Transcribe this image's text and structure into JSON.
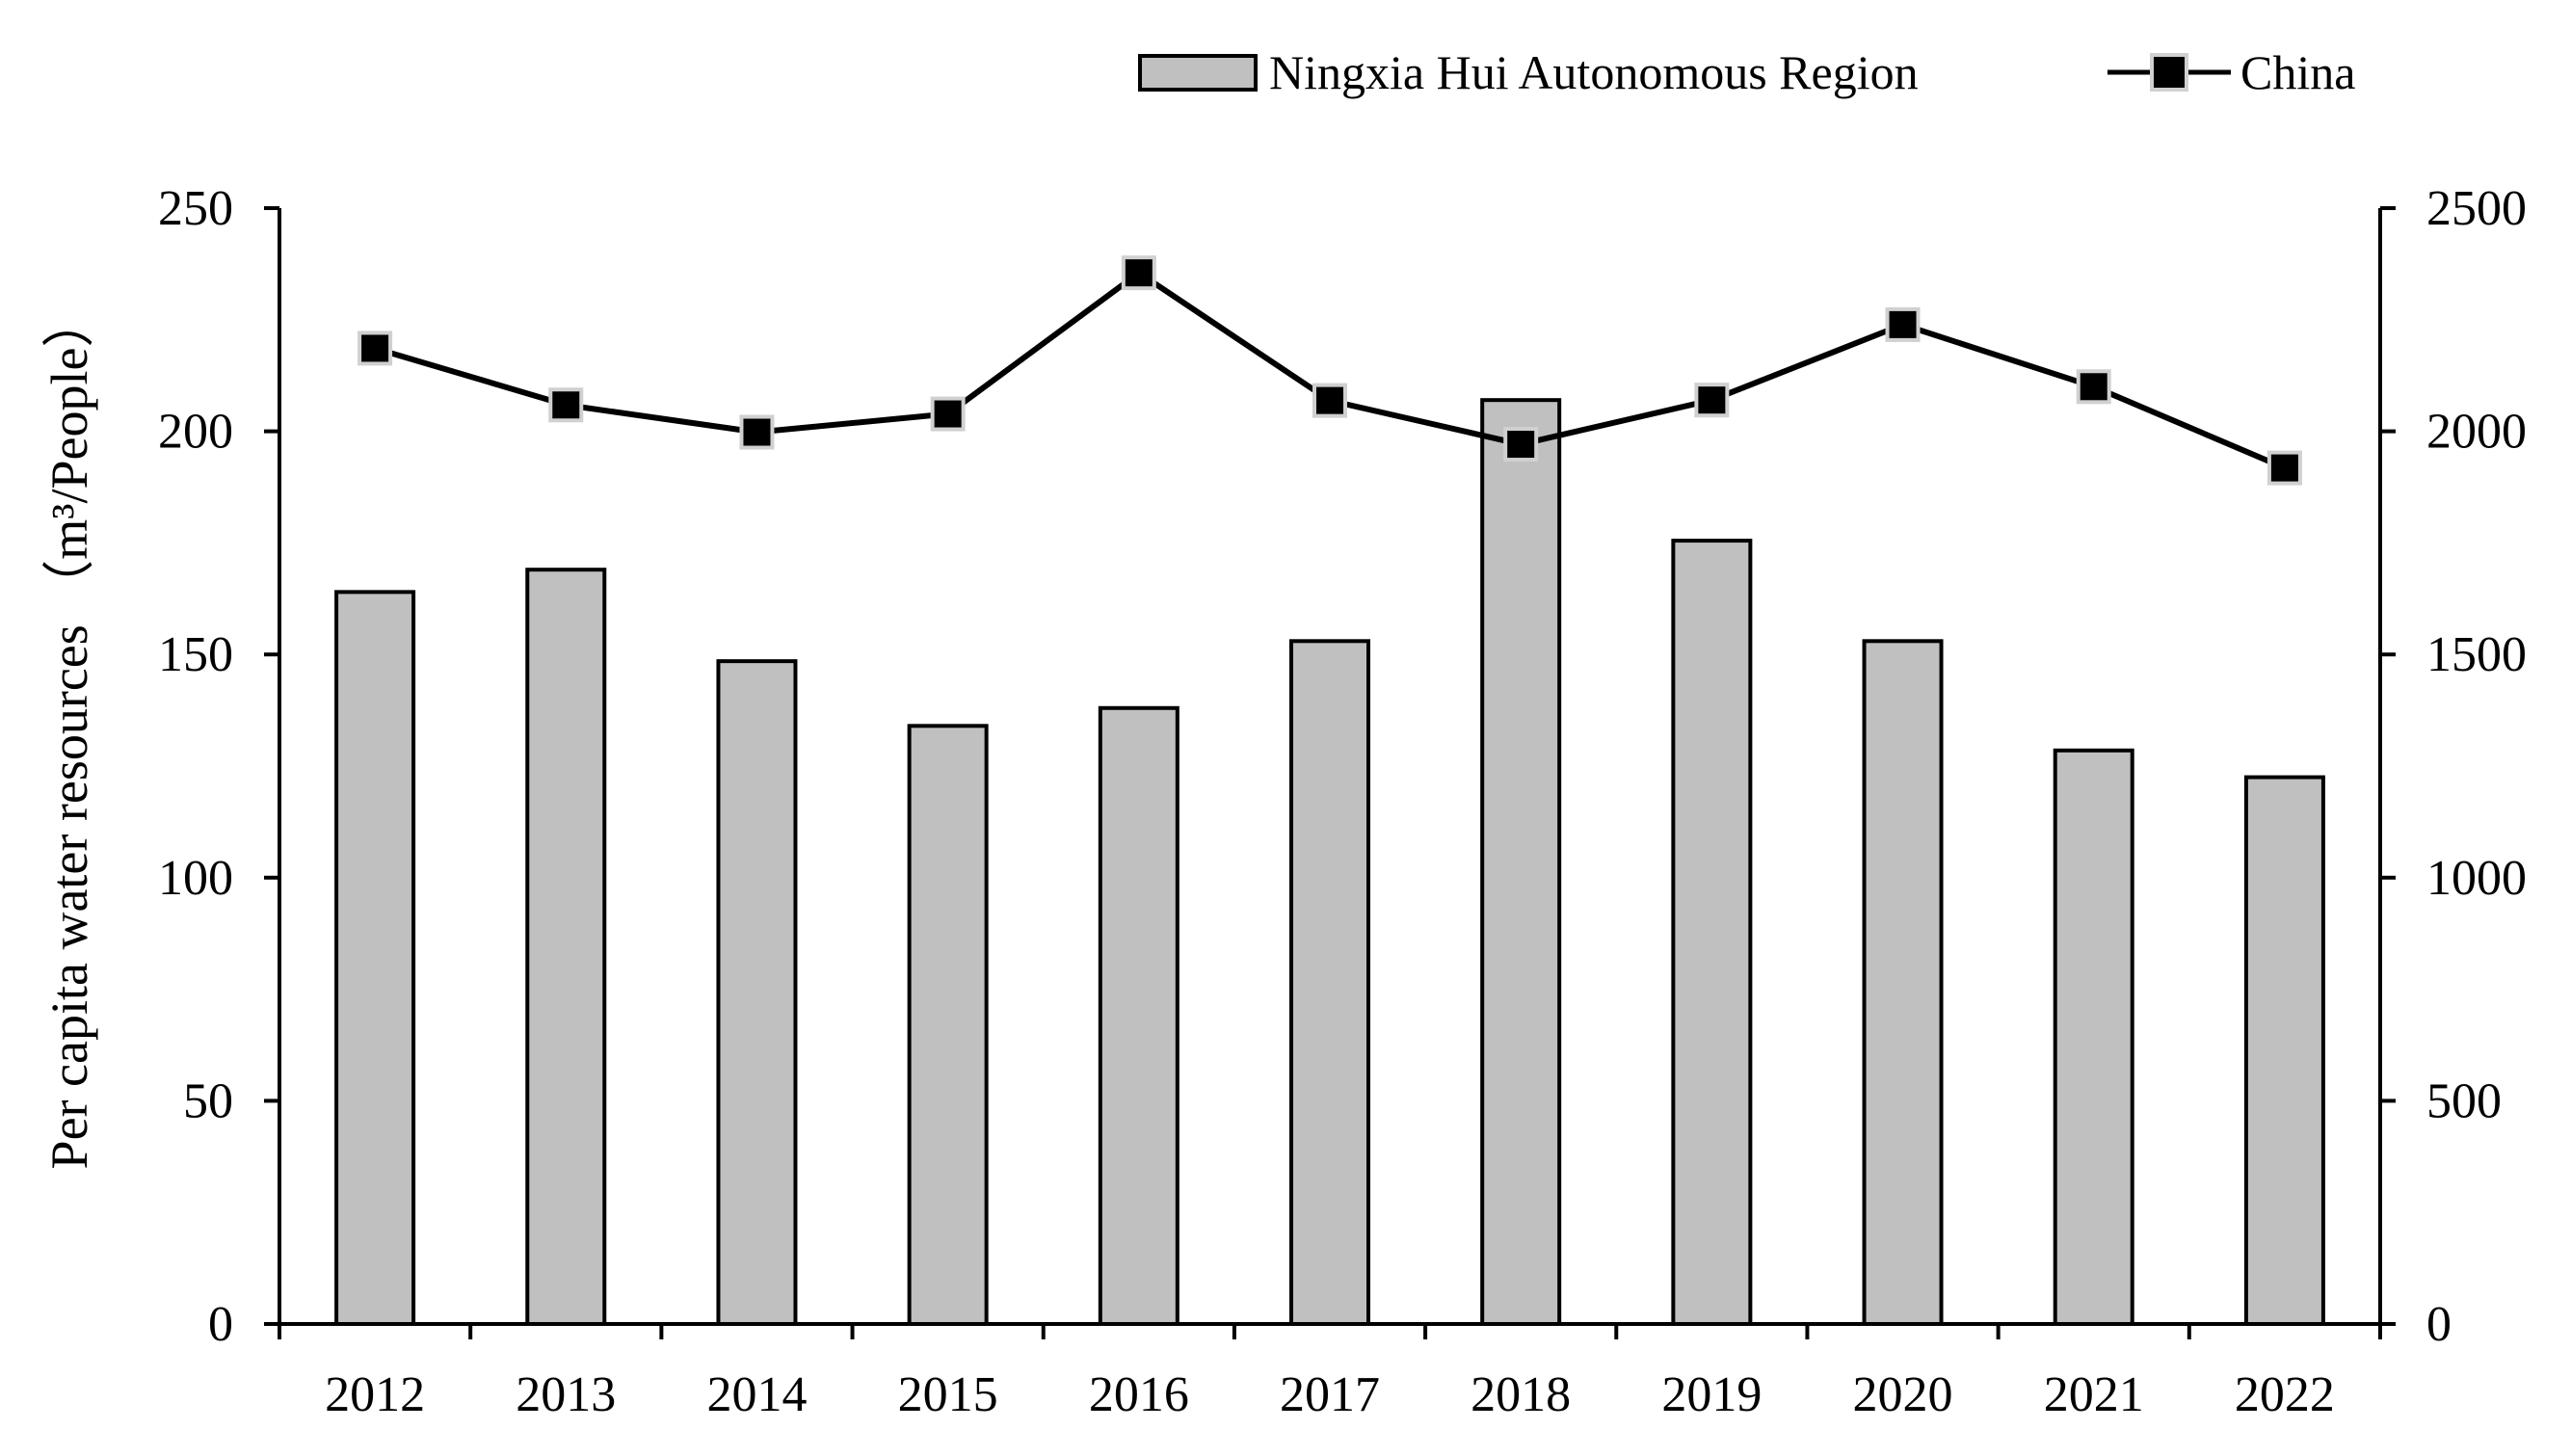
{
  "chart_data": {
    "type": "bar",
    "categories": [
      "2012",
      "2013",
      "2014",
      "2015",
      "2016",
      "2017",
      "2018",
      "2019",
      "2020",
      "2021",
      "2022"
    ],
    "series": [
      {
        "name": "Ningxia Hui Autonomous Region",
        "type": "bar",
        "axis": "left",
        "values": [
          164,
          169,
          148.5,
          134,
          138,
          153,
          207,
          175.5,
          153,
          128.5,
          122.5
        ]
      },
      {
        "name": "China",
        "type": "line",
        "axis": "right",
        "marker": "square",
        "values": [
          2186,
          2059,
          1998,
          2039,
          2355,
          2069,
          1971,
          2070,
          2239,
          2100,
          1918
        ]
      }
    ],
    "ylabel": "Per capita water resources （m³/People）",
    "xlabel": "",
    "y_left": {
      "min": 0,
      "max": 250,
      "ticks": [
        "0",
        "50",
        "100",
        "150",
        "200",
        "250"
      ]
    },
    "y_right": {
      "min": 0,
      "max": 2500,
      "ticks": [
        "0",
        "500",
        "1000",
        "1500",
        "2000",
        "2500"
      ]
    },
    "grid": false,
    "legend_position": "top-right",
    "colors": {
      "bar_fill": "#c0c0c0",
      "bar_stroke": "#000000",
      "line": "#000000",
      "marker_fill": "#000000",
      "marker_stroke": "#d0d0d0",
      "axis": "#000000"
    }
  }
}
